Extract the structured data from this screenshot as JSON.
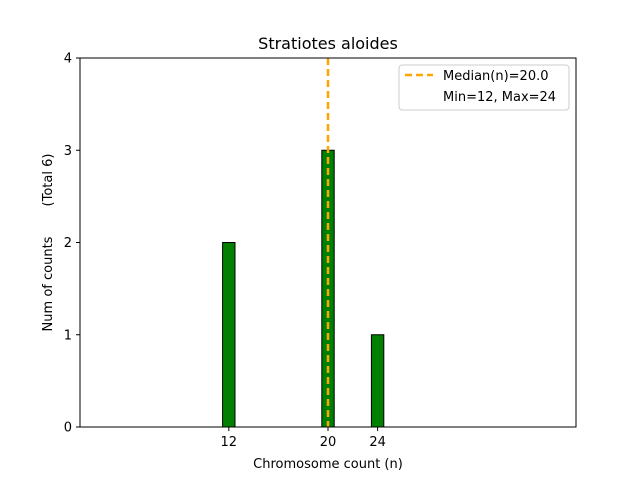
{
  "chart_data": {
    "type": "bar",
    "title": "Stratiotes aloides",
    "xlabel": "Chromosome count (n)",
    "ylabel": "Num of counts",
    "ylabel_note": "(Total 6)",
    "x": [
      12,
      20,
      24
    ],
    "values": [
      2,
      3,
      1
    ],
    "x_ticks": [
      12,
      20,
      24
    ],
    "y_ticks": [
      0,
      1,
      2,
      3,
      4
    ],
    "xlim": [
      0,
      40
    ],
    "ylim": [
      0,
      4
    ],
    "bar_color": "#008000",
    "bar_edge_color": "#000000",
    "median": 20.0,
    "median_color": "#FFA500",
    "legend": {
      "position": "top-right",
      "entries": [
        "Median(n)=20.0",
        "Min=12, Max=24"
      ]
    },
    "grid": false
  }
}
